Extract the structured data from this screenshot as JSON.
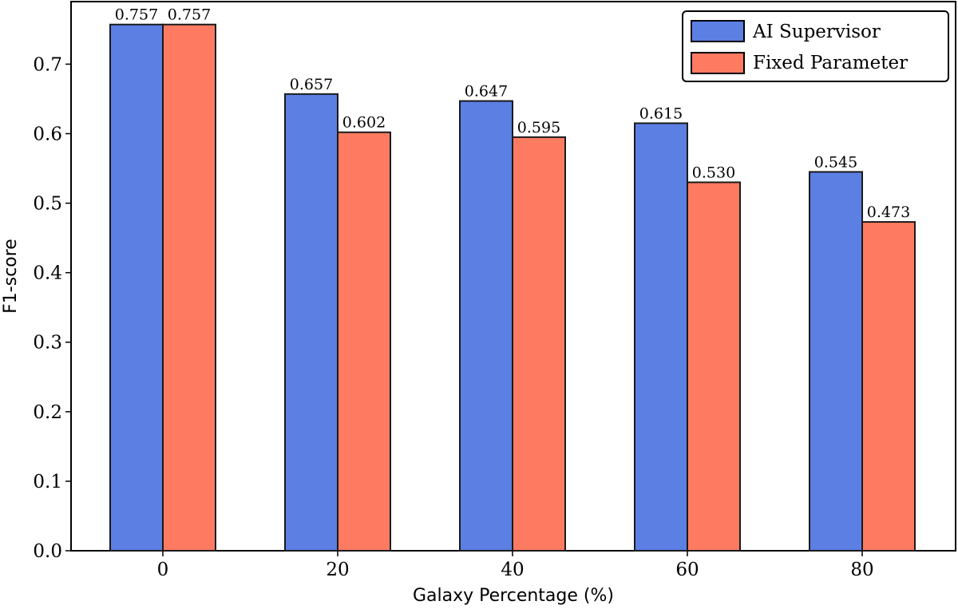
{
  "chart_data": {
    "type": "bar",
    "categories": [
      "0",
      "20",
      "40",
      "60",
      "80"
    ],
    "series": [
      {
        "name": "AI Supervisor",
        "values": [
          0.757,
          0.657,
          0.647,
          0.615,
          0.545
        ],
        "labels": [
          "0.757",
          "0.657",
          "0.647",
          "0.615",
          "0.545"
        ],
        "color": "#5b7fe3"
      },
      {
        "name": "Fixed Parameter",
        "values": [
          0.757,
          0.602,
          0.595,
          0.53,
          0.473
        ],
        "labels": [
          "0.757",
          "0.602",
          "0.595",
          "0.530",
          "0.473"
        ],
        "color": "#fe7b62"
      }
    ],
    "xlabel": "Galaxy Percentage (%)",
    "ylabel": "F1-score",
    "ylim": [
      0,
      0.79
    ],
    "yticks": [
      "0.0",
      "0.1",
      "0.2",
      "0.3",
      "0.4",
      "0.5",
      "0.6",
      "0.7"
    ],
    "grid": false,
    "legend_position": "top-right"
  }
}
